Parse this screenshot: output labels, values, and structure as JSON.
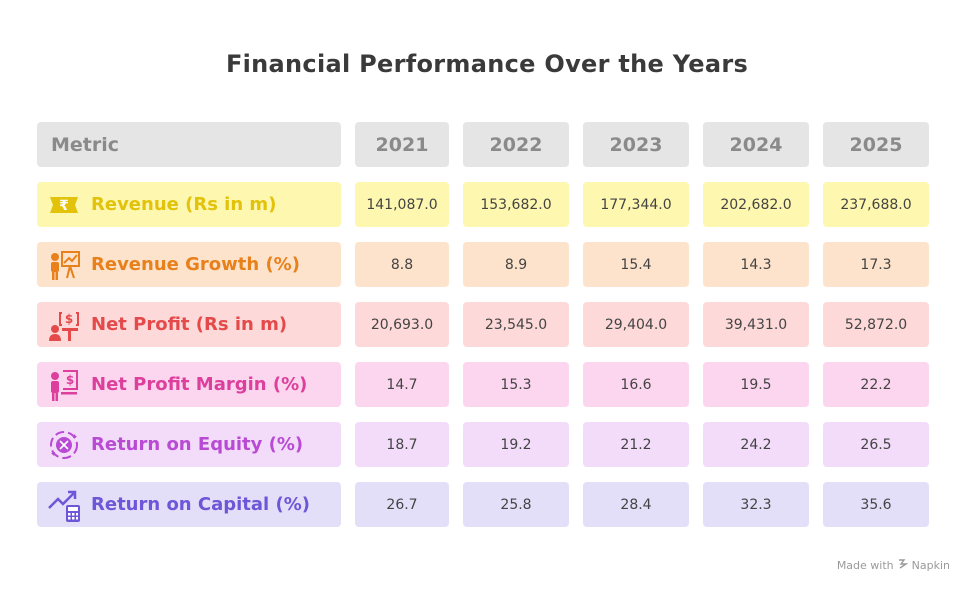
{
  "chart_data": {
    "type": "table",
    "title": "Financial Performance Over the Years",
    "header": {
      "metric": "Metric",
      "years": [
        "2021",
        "2022",
        "2023",
        "2024",
        "2025"
      ]
    },
    "rows": [
      {
        "label": "Revenue (Rs in m)",
        "icon": "rupee-note-icon",
        "values": [
          "141,087.0",
          "153,682.0",
          "177,344.0",
          "202,682.0",
          "237,688.0"
        ],
        "bg": "#fdf7b0",
        "color": "#e2c20a"
      },
      {
        "label": "Revenue Growth (%)",
        "icon": "presenter-chart-icon",
        "values": [
          "8.8",
          "8.9",
          "15.4",
          "14.3",
          "17.3"
        ],
        "bg": "#fde3cc",
        "color": "#e8801c"
      },
      {
        "label": "Net Profit (Rs in m)",
        "icon": "person-dollar-icon",
        "values": [
          "20,693.0",
          "23,545.0",
          "29,404.0",
          "39,431.0",
          "52,872.0"
        ],
        "bg": "#fdd9d9",
        "color": "#e44a4a"
      },
      {
        "label": "Net Profit Margin (%)",
        "icon": "person-dollar-board-icon",
        "values": [
          "14.7",
          "15.3",
          "16.6",
          "19.5",
          "22.2"
        ],
        "bg": "#fcd6ee",
        "color": "#dd3f9c"
      },
      {
        "label": "Return on Equity (%)",
        "icon": "circular-arrows-icon",
        "values": [
          "18.7",
          "19.2",
          "21.2",
          "24.2",
          "26.5"
        ],
        "bg": "#f2dcf9",
        "color": "#b84ad4"
      },
      {
        "label": "Return on Capital (%)",
        "icon": "growth-calculator-icon",
        "values": [
          "26.7",
          "25.8",
          "28.4",
          "32.3",
          "35.6"
        ],
        "bg": "#e4dff8",
        "color": "#6e56d8"
      }
    ]
  },
  "footer": {
    "text": "Made with",
    "brand": "Napkin"
  },
  "colors": {
    "header_bg": "#e5e5e5",
    "header_text": "#8a8a8a",
    "title": "#3a3a3a"
  }
}
